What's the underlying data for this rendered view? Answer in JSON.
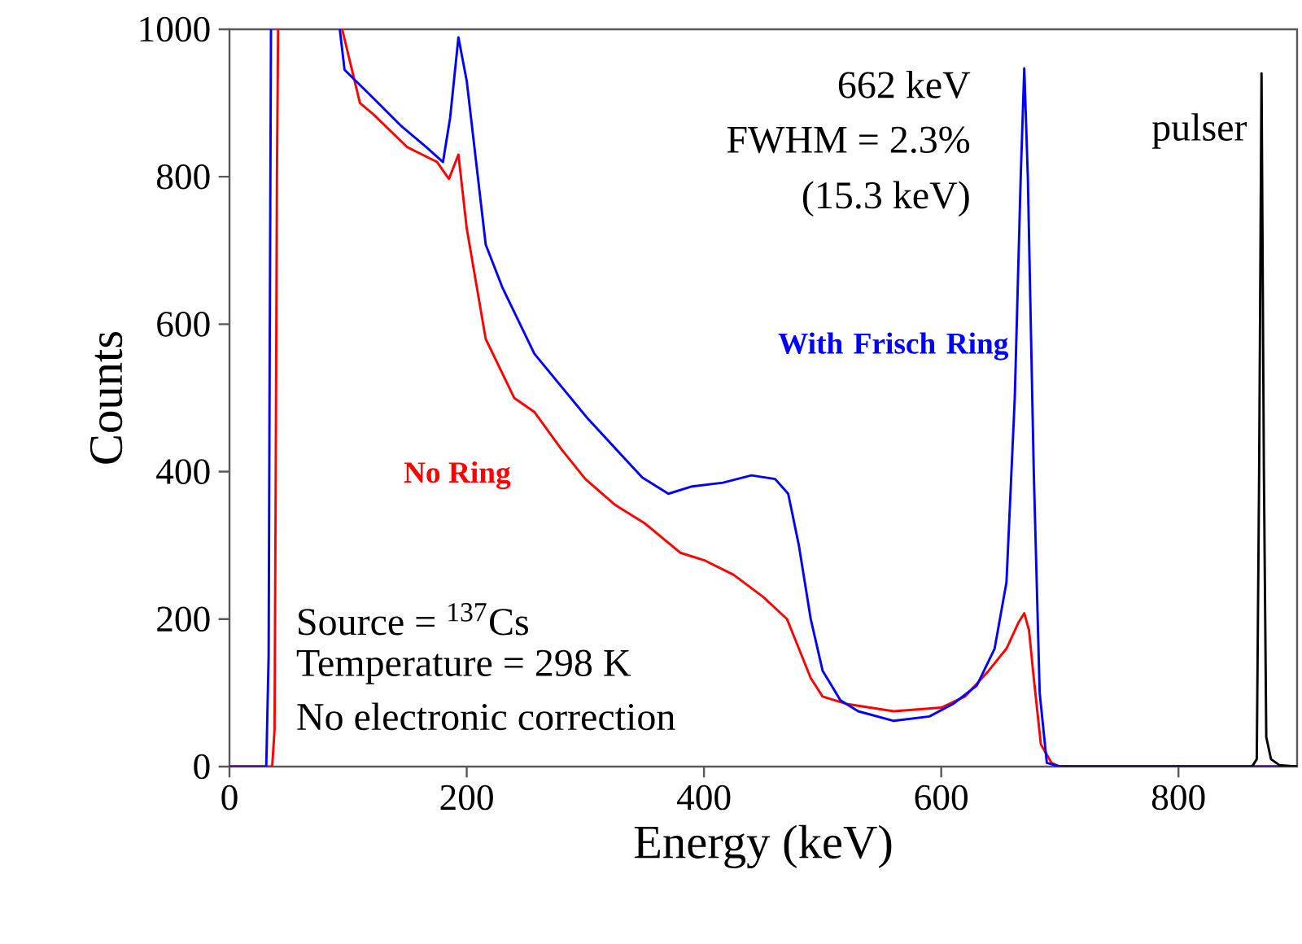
{
  "chart_data": {
    "type": "line",
    "xlabel": "Energy (keV)",
    "ylabel": "Counts",
    "xlim": [
      0,
      900
    ],
    "ylim": [
      0,
      1000
    ],
    "xticks": [
      0,
      200,
      400,
      600,
      800
    ],
    "yticks": [
      0,
      200,
      400,
      600,
      800,
      1000
    ],
    "annotations": [
      "662 keV",
      "FWHM = 2.3%",
      "(15.3 keV)",
      "Source = $^{137}$Cs",
      "Temperature = 298 K",
      "No electronic correction"
    ],
    "series": [
      {
        "name": "No Ring",
        "color": "#ff0000",
        "x": [
          0,
          36,
          38,
          39,
          40,
          41,
          68,
          95,
          110,
          121,
          150,
          175,
          185,
          193,
          200,
          216,
          240,
          257,
          280,
          300,
          325,
          350,
          380,
          400,
          425,
          450,
          470,
          480,
          490,
          500,
          520,
          560,
          600,
          620,
          640,
          655,
          665,
          670,
          674,
          678,
          684,
          693,
          700,
          900
        ],
        "values": [
          0,
          0,
          50,
          400,
          800,
          1000,
          null,
          1000,
          900,
          885,
          840,
          820,
          797,
          830,
          730,
          580,
          500,
          481,
          430,
          390,
          355,
          330,
          290,
          280,
          260,
          230,
          200,
          160,
          120,
          95,
          85,
          75,
          80,
          95,
          130,
          160,
          195,
          208,
          185,
          120,
          30,
          5,
          0,
          0
        ]
      },
      {
        "name": "With Frisch Ring",
        "color": "#0000ff",
        "x": [
          0,
          31,
          33,
          34,
          35,
          64,
          93,
          97,
          121,
          144,
          166,
          180,
          186,
          193,
          200,
          216,
          230,
          257,
          302,
          348,
          370,
          390,
          416,
          440,
          460,
          471,
          480,
          490,
          500,
          515,
          530,
          560,
          590,
          610,
          630,
          645,
          655,
          662,
          667,
          670,
          673,
          678,
          683,
          689,
          700,
          900
        ],
        "values": [
          0,
          0,
          150,
          600,
          1000,
          null,
          1000,
          945,
          907,
          870,
          840,
          820,
          880,
          989,
          930,
          708,
          650,
          560,
          472,
          392,
          370,
          380,
          385,
          395,
          390,
          370,
          300,
          200,
          130,
          90,
          75,
          62,
          68,
          85,
          110,
          160,
          250,
          500,
          800,
          947,
          800,
          400,
          100,
          5,
          0,
          0
        ]
      },
      {
        "name": "pulser",
        "color": "#000000",
        "x": [
          700,
          862,
          866,
          868,
          870,
          872,
          874,
          878,
          885,
          900
        ],
        "values": [
          0,
          0,
          10,
          400,
          940,
          400,
          40,
          10,
          2,
          0
        ]
      }
    ]
  }
}
